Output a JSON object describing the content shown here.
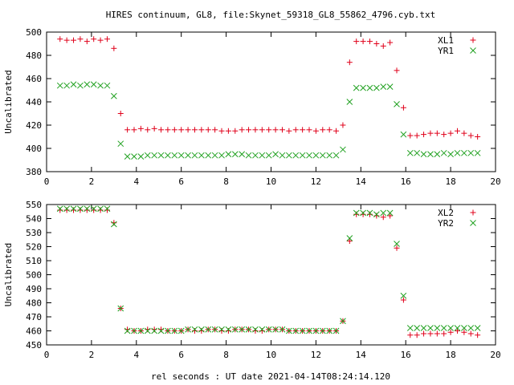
{
  "title": "HIRES continuum, GL8, file:Skynet_59318_GL8_55862_4796.cyb.txt",
  "xlabel": "rel seconds : UT date 2021-04-14T08:24:14.120",
  "colors": {
    "red": "#e0001a",
    "green": "#21a121"
  },
  "chart_data": [
    {
      "type": "scatter",
      "xlabel": "",
      "ylabel": "Uncalibrated",
      "xlim": [
        0,
        20
      ],
      "ylim": [
        380,
        500
      ],
      "xticks": [
        "0",
        "2",
        "4",
        "6",
        "8",
        "10",
        "12",
        "14",
        "16",
        "18",
        "20"
      ],
      "yticks": [
        "380",
        "400",
        "420",
        "440",
        "460",
        "480",
        "500"
      ],
      "legend_position": "top-right",
      "series": [
        {
          "name": "XL1",
          "marker": "plus",
          "color": "#e0001a",
          "x": [
            0.6,
            0.9,
            1.2,
            1.5,
            1.8,
            2.1,
            2.4,
            2.7,
            3.0,
            3.3,
            3.6,
            3.9,
            4.2,
            4.5,
            4.8,
            5.1,
            5.4,
            5.7,
            6.0,
            6.3,
            6.6,
            6.9,
            7.2,
            7.5,
            7.8,
            8.1,
            8.4,
            8.7,
            9.0,
            9.3,
            9.6,
            9.9,
            10.2,
            10.5,
            10.8,
            11.1,
            11.4,
            11.7,
            12.0,
            12.3,
            12.6,
            12.9,
            13.2,
            13.5,
            13.8,
            14.1,
            14.4,
            14.7,
            15.0,
            15.3,
            15.6,
            15.9,
            16.2,
            16.5,
            16.8,
            17.1,
            17.4,
            17.7,
            18.0,
            18.3,
            18.6,
            18.9,
            19.2
          ],
          "y": [
            494,
            493,
            493,
            494,
            492,
            494,
            493,
            494,
            486,
            430,
            416,
            416,
            417,
            416,
            417,
            416,
            416,
            416,
            416,
            416,
            416,
            416,
            416,
            416,
            415,
            415,
            415,
            416,
            416,
            416,
            416,
            416,
            416,
            416,
            415,
            416,
            416,
            416,
            415,
            416,
            416,
            415,
            420,
            474,
            492,
            492,
            492,
            490,
            488,
            491,
            467,
            435,
            411,
            411,
            412,
            413,
            413,
            412,
            413,
            415,
            413,
            411,
            410
          ]
        },
        {
          "name": "YR1",
          "marker": "cross",
          "color": "#21a121",
          "x": [
            0.6,
            0.9,
            1.2,
            1.5,
            1.8,
            2.1,
            2.4,
            2.7,
            3.0,
            3.3,
            3.6,
            3.9,
            4.2,
            4.5,
            4.8,
            5.1,
            5.4,
            5.7,
            6.0,
            6.3,
            6.6,
            6.9,
            7.2,
            7.5,
            7.8,
            8.1,
            8.4,
            8.7,
            9.0,
            9.3,
            9.6,
            9.9,
            10.2,
            10.5,
            10.8,
            11.1,
            11.4,
            11.7,
            12.0,
            12.3,
            12.6,
            12.9,
            13.2,
            13.5,
            13.8,
            14.1,
            14.4,
            14.7,
            15.0,
            15.3,
            15.6,
            15.9,
            16.2,
            16.5,
            16.8,
            17.1,
            17.4,
            17.7,
            18.0,
            18.3,
            18.6,
            18.9,
            19.2
          ],
          "y": [
            454,
            454,
            455,
            454,
            455,
            455,
            454,
            454,
            445,
            404,
            393,
            393,
            393,
            394,
            394,
            394,
            394,
            394,
            394,
            394,
            394,
            394,
            394,
            394,
            394,
            395,
            395,
            395,
            394,
            394,
            394,
            394,
            395,
            394,
            394,
            394,
            394,
            394,
            394,
            394,
            394,
            394,
            399,
            440,
            452,
            452,
            452,
            452,
            453,
            453,
            438,
            412,
            396,
            396,
            395,
            395,
            395,
            396,
            395,
            396,
            396,
            396,
            396
          ]
        }
      ]
    },
    {
      "type": "scatter",
      "xlabel": "rel seconds : UT date 2021-04-14T08:24:14.120",
      "ylabel": "Uncalibrated",
      "xlim": [
        0,
        20
      ],
      "ylim": [
        450,
        550
      ],
      "xticks": [
        "0",
        "2",
        "4",
        "6",
        "8",
        "10",
        "12",
        "14",
        "16",
        "18",
        "20"
      ],
      "yticks": [
        "450",
        "460",
        "470",
        "480",
        "490",
        "500",
        "510",
        "520",
        "530",
        "540",
        "550"
      ],
      "legend_position": "top-right",
      "series": [
        {
          "name": "XL2",
          "marker": "plus",
          "color": "#e0001a",
          "x": [
            0.6,
            0.9,
            1.2,
            1.5,
            1.8,
            2.1,
            2.4,
            2.7,
            3.0,
            3.3,
            3.6,
            3.9,
            4.2,
            4.5,
            4.8,
            5.1,
            5.4,
            5.7,
            6.0,
            6.3,
            6.6,
            6.9,
            7.2,
            7.5,
            7.8,
            8.1,
            8.4,
            8.7,
            9.0,
            9.3,
            9.6,
            9.9,
            10.2,
            10.5,
            10.8,
            11.1,
            11.4,
            11.7,
            12.0,
            12.3,
            12.6,
            12.9,
            13.2,
            13.5,
            13.8,
            14.1,
            14.4,
            14.7,
            15.0,
            15.3,
            15.6,
            15.9,
            16.2,
            16.5,
            16.8,
            17.1,
            17.4,
            17.7,
            18.0,
            18.3,
            18.6,
            18.9,
            19.2
          ],
          "y": [
            546,
            546,
            546,
            546,
            546,
            546,
            546,
            546,
            537,
            476,
            461,
            460,
            460,
            461,
            461,
            461,
            460,
            460,
            460,
            461,
            460,
            460,
            461,
            461,
            460,
            460,
            461,
            461,
            461,
            460,
            460,
            461,
            461,
            461,
            460,
            460,
            460,
            460,
            460,
            460,
            460,
            460,
            467,
            524,
            543,
            543,
            543,
            542,
            541,
            542,
            519,
            482,
            457,
            457,
            458,
            458,
            458,
            458,
            459,
            460,
            459,
            458,
            457
          ]
        },
        {
          "name": "YR2",
          "marker": "cross",
          "color": "#21a121",
          "x": [
            0.6,
            0.9,
            1.2,
            1.5,
            1.8,
            2.1,
            2.4,
            2.7,
            3.0,
            3.3,
            3.6,
            3.9,
            4.2,
            4.5,
            4.8,
            5.1,
            5.4,
            5.7,
            6.0,
            6.3,
            6.6,
            6.9,
            7.2,
            7.5,
            7.8,
            8.1,
            8.4,
            8.7,
            9.0,
            9.3,
            9.6,
            9.9,
            10.2,
            10.5,
            10.8,
            11.1,
            11.4,
            11.7,
            12.0,
            12.3,
            12.6,
            12.9,
            13.2,
            13.5,
            13.8,
            14.1,
            14.4,
            14.7,
            15.0,
            15.3,
            15.6,
            15.9,
            16.2,
            16.5,
            16.8,
            17.1,
            17.4,
            17.7,
            18.0,
            18.3,
            18.6,
            18.9,
            19.2
          ],
          "y": [
            547,
            547,
            547,
            547,
            547,
            547,
            547,
            547,
            536,
            476,
            460,
            460,
            460,
            460,
            460,
            460,
            460,
            460,
            460,
            461,
            461,
            461,
            461,
            461,
            461,
            461,
            461,
            461,
            461,
            461,
            461,
            461,
            461,
            461,
            460,
            460,
            460,
            460,
            460,
            460,
            460,
            460,
            467,
            526,
            544,
            544,
            544,
            543,
            544,
            544,
            522,
            485,
            462,
            462,
            462,
            462,
            462,
            462,
            462,
            462,
            462,
            462,
            462
          ]
        }
      ]
    }
  ]
}
